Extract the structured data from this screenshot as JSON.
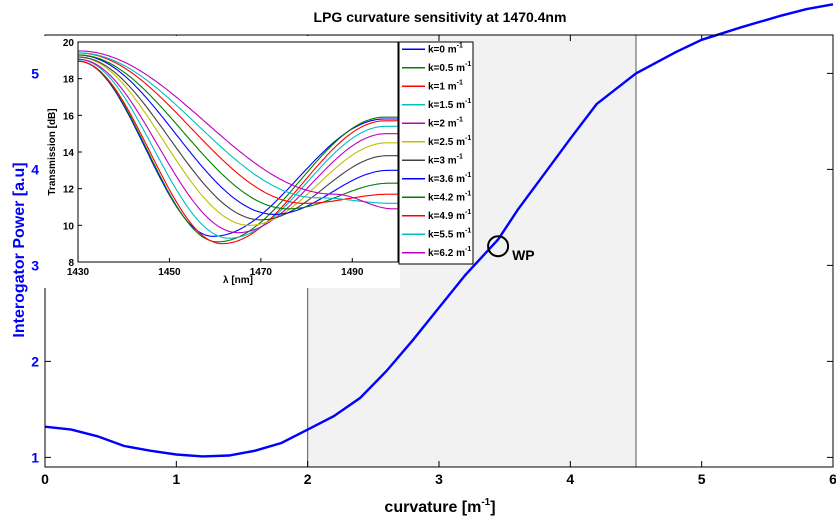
{
  "chart_data": [
    {
      "type": "line",
      "title": "LPG curvature sensitivity at 1470.4nm",
      "xlabel": "curvature [m",
      "xlabel_sup": "-1",
      "xlabel_end": "]",
      "ylabel": "Interogator Power [a.u]",
      "xlim": [
        0,
        6
      ],
      "ylim": [
        0.9,
        5.4
      ],
      "xticks": [
        "0",
        "1",
        "2",
        "3",
        "4",
        "5",
        "6"
      ],
      "yticks": [
        "1",
        "2",
        "3",
        "4",
        "5"
      ],
      "x_tick_values": [
        0,
        1,
        2,
        3,
        4,
        5,
        6
      ],
      "y_tick_values": [
        1,
        2,
        3,
        4,
        5
      ],
      "line_color": "#0000ff",
      "shaded_region": [
        2,
        4.5
      ],
      "shaded_color": "#f2f2f2",
      "series": [
        {
          "x": [
            0,
            0.2,
            0.4,
            0.6,
            0.8,
            1.0,
            1.2,
            1.4,
            1.6,
            1.8,
            2.0,
            2.2,
            2.4,
            2.6,
            2.8,
            3.0,
            3.2,
            3.45,
            3.6,
            3.8,
            4.0,
            4.2,
            4.5,
            4.8,
            5.0,
            5.3,
            5.6,
            5.8,
            6.0
          ],
          "values": [
            1.32,
            1.29,
            1.22,
            1.12,
            1.07,
            1.03,
            1.01,
            1.02,
            1.07,
            1.15,
            1.29,
            1.43,
            1.62,
            1.9,
            2.22,
            2.56,
            2.9,
            3.27,
            3.58,
            3.95,
            4.32,
            4.68,
            5.0,
            5.22,
            5.35,
            5.48,
            5.6,
            5.67,
            5.72
          ]
        }
      ],
      "annotation": {
        "text": "WP",
        "x": 3.45,
        "y": 3.2
      }
    },
    {
      "type": "line",
      "title": "",
      "xlabel": "λ [nm]",
      "ylabel": "Transmission [dB]",
      "xlim": [
        1430,
        1500
      ],
      "ylim": [
        8,
        20
      ],
      "xticks": [
        "1430",
        "1450",
        "1470",
        "1490"
      ],
      "yticks": [
        "8",
        "10",
        "12",
        "14",
        "16",
        "18",
        "20"
      ],
      "x_tick_values": [
        1430,
        1450,
        1470,
        1490
      ],
      "y_tick_values": [
        8,
        10,
        12,
        14,
        16,
        18,
        20
      ],
      "legend_position": "right",
      "series": [
        {
          "name": "k=0 m",
          "sup": "-1",
          "color": "#0000ff",
          "min_x": 1459.5,
          "min_y": 9.4,
          "start_y": 19.0,
          "end_y": 15.8
        },
        {
          "name": "k=0.5 m",
          "sup": "-1",
          "color": "#007f00",
          "min_x": 1460.5,
          "min_y": 9.1,
          "start_y": 19.0,
          "end_y": 15.9
        },
        {
          "name": "k=1 m",
          "sup": "-1",
          "color": "#ff0000",
          "min_x": 1461.5,
          "min_y": 9.0,
          "start_y": 19.0,
          "end_y": 15.7
        },
        {
          "name": "k=1.5 m",
          "sup": "-1",
          "color": "#00bfbf",
          "min_x": 1463.0,
          "min_y": 9.3,
          "start_y": 19.1,
          "end_y": 15.4
        },
        {
          "name": "k=2 m",
          "sup": "-1",
          "color": "#bf00bf",
          "min_x": 1465.0,
          "min_y": 9.6,
          "start_y": 19.1,
          "end_y": 15.0
        },
        {
          "name": "k=2.5 m",
          "sup": "-1",
          "color": "#bfbf00",
          "min_x": 1467.5,
          "min_y": 10.0,
          "start_y": 19.2,
          "end_y": 14.5
        },
        {
          "name": "k=3 m",
          "sup": "-1",
          "color": "#404040",
          "min_x": 1470.0,
          "min_y": 10.3,
          "start_y": 19.2,
          "end_y": 13.8
        },
        {
          "name": "k=3.6 m",
          "sup": "-1",
          "color": "#0000ff",
          "min_x": 1473.0,
          "min_y": 10.6,
          "start_y": 19.3,
          "end_y": 13.0
        },
        {
          "name": "k=4.2 m",
          "sup": "-1",
          "color": "#007f00",
          "min_x": 1476.0,
          "min_y": 10.9,
          "start_y": 19.3,
          "end_y": 12.3
        },
        {
          "name": "k=4.9 m",
          "sup": "-1",
          "color": "#ff0000",
          "min_x": 1479.5,
          "min_y": 11.2,
          "start_y": 19.4,
          "end_y": 11.7
        },
        {
          "name": "k=5.5 m",
          "sup": "-1",
          "color": "#00bfbf",
          "min_x": 1482.5,
          "min_y": 11.5,
          "start_y": 19.4,
          "end_y": 11.2
        },
        {
          "name": "k=6.2 m",
          "sup": "-1",
          "color": "#bf00bf",
          "min_x": 1486.0,
          "min_y": 11.7,
          "start_y": 19.5,
          "end_y": 10.9
        }
      ]
    }
  ]
}
